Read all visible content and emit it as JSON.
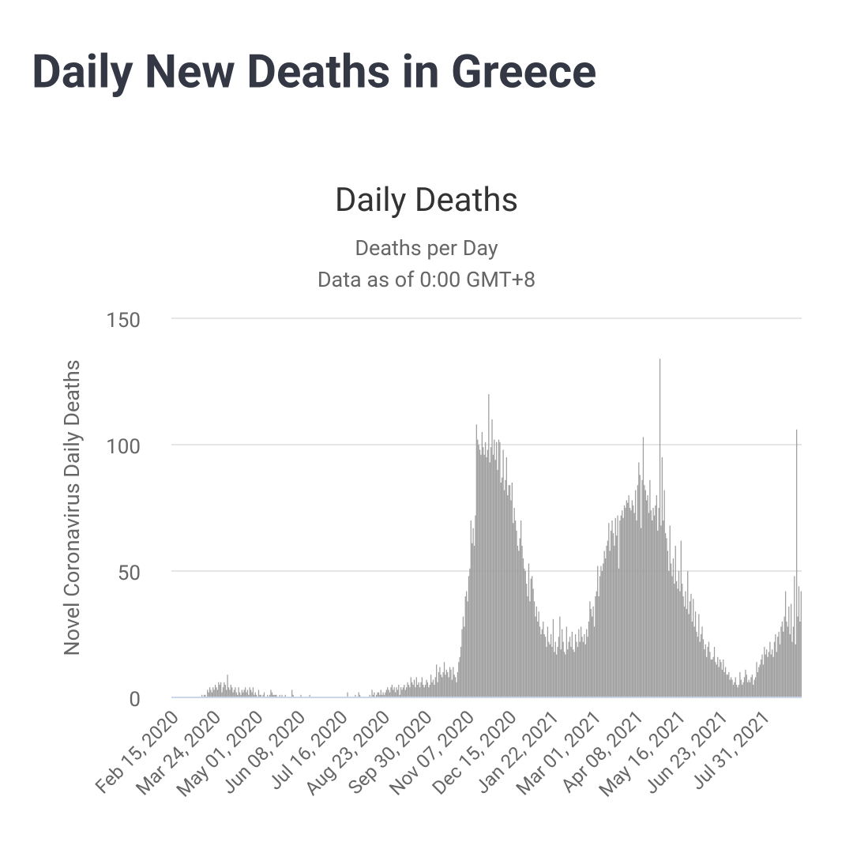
{
  "header": {
    "title": "Daily New Deaths in Greece"
  },
  "chart_data": {
    "type": "bar",
    "title": "Daily Deaths",
    "subtitle": "Deaths per Day",
    "note": "Data as of 0:00 GMT+8",
    "y_label": "Novel Coronavirus Daily Deaths",
    "color": "#9e9e9e",
    "grid": true,
    "ylim": [
      0,
      150
    ],
    "yticks": [
      0,
      50,
      100,
      150
    ],
    "categories": [
      "Feb 15, 2020",
      null,
      null,
      null,
      null,
      null,
      null,
      null,
      null,
      null,
      null,
      null,
      null,
      null,
      null,
      null,
      null,
      null,
      null,
      null,
      null,
      null,
      null,
      null,
      null,
      null,
      null,
      null,
      null,
      null,
      null,
      null,
      null,
      null,
      null,
      null,
      null,
      null,
      "Mar 24, 2020",
      null,
      null,
      null,
      null,
      null,
      null,
      null,
      null,
      null,
      null,
      null,
      null,
      null,
      null,
      null,
      null,
      null,
      null,
      null,
      null,
      null,
      null,
      null,
      null,
      null,
      null,
      null,
      null,
      null,
      null,
      null,
      null,
      null,
      null,
      null,
      null,
      null,
      "May 01, 2020",
      null,
      null,
      null,
      null,
      null,
      null,
      null,
      null,
      null,
      null,
      null,
      null,
      null,
      null,
      null,
      null,
      null,
      null,
      null,
      null,
      null,
      null,
      null,
      null,
      null,
      null,
      null,
      null,
      null,
      null,
      null,
      null,
      null,
      null,
      null,
      null,
      null,
      "Jun 08, 2020",
      null,
      null,
      null,
      null,
      null,
      null,
      null,
      null,
      null,
      null,
      null,
      null,
      null,
      null,
      null,
      null,
      null,
      null,
      null,
      null,
      null,
      null,
      null,
      null,
      null,
      null,
      null,
      null,
      null,
      null,
      null,
      null,
      null,
      null,
      null,
      null,
      null,
      "Jul 16, 2020",
      null,
      null,
      null,
      null,
      null,
      null,
      null,
      null,
      null,
      null,
      null,
      null,
      null,
      null,
      null,
      null,
      null,
      null,
      null,
      null,
      null,
      null,
      null,
      null,
      null,
      null,
      null,
      null,
      null,
      null,
      null,
      null,
      null,
      null,
      null,
      null,
      null,
      "Aug 23, 2020",
      null,
      null,
      null,
      null,
      null,
      null,
      null,
      null,
      null,
      null,
      null,
      null,
      null,
      null,
      null,
      null,
      null,
      null,
      null,
      null,
      null,
      null,
      null,
      null,
      null,
      null,
      null,
      null,
      null,
      null,
      null,
      null,
      null,
      null,
      null,
      null,
      null,
      "Sep 30, 2020",
      null,
      null,
      null,
      null,
      null,
      null,
      null,
      null,
      null,
      null,
      null,
      null,
      null,
      null,
      null,
      null,
      null,
      null,
      null,
      null,
      null,
      null,
      null,
      null,
      null,
      null,
      null,
      null,
      null,
      null,
      null,
      null,
      null,
      null,
      null,
      null,
      null,
      "Nov 07, 2020",
      null,
      null,
      null,
      null,
      null,
      null,
      null,
      null,
      null,
      null,
      null,
      null,
      null,
      null,
      null,
      null,
      null,
      null,
      null,
      null,
      null,
      null,
      null,
      null,
      null,
      null,
      null,
      null,
      null,
      null,
      null,
      null,
      null,
      null,
      null,
      null,
      null,
      "Dec 15, 2020",
      null,
      null,
      null,
      null,
      null,
      null,
      null,
      null,
      null,
      null,
      null,
      null,
      null,
      null,
      null,
      null,
      null,
      null,
      null,
      null,
      null,
      null,
      null,
      null,
      null,
      null,
      null,
      null,
      null,
      null,
      null,
      null,
      null,
      null,
      null,
      null,
      null,
      "Jan 22, 2021",
      null,
      null,
      null,
      null,
      null,
      null,
      null,
      null,
      null,
      null,
      null,
      null,
      null,
      null,
      null,
      null,
      null,
      null,
      null,
      null,
      null,
      null,
      null,
      null,
      null,
      null,
      null,
      null,
      null,
      null,
      null,
      null,
      null,
      null,
      null,
      null,
      null,
      "Mar 01, 2021",
      null,
      null,
      null,
      null,
      null,
      null,
      null,
      null,
      null,
      null,
      null,
      null,
      null,
      null,
      null,
      null,
      null,
      null,
      null,
      null,
      null,
      null,
      null,
      null,
      null,
      null,
      null,
      null,
      null,
      null,
      null,
      null,
      null,
      null,
      null,
      null,
      null,
      "Apr 08, 2021",
      null,
      null,
      null,
      null,
      null,
      null,
      null,
      null,
      null,
      null,
      null,
      null,
      null,
      null,
      null,
      null,
      null,
      null,
      null,
      null,
      null,
      null,
      null,
      null,
      null,
      null,
      null,
      null,
      null,
      null,
      null,
      null,
      null,
      null,
      null,
      null,
      null,
      "May 16, 2021",
      null,
      null,
      null,
      null,
      null,
      null,
      null,
      null,
      null,
      null,
      null,
      null,
      null,
      null,
      null,
      null,
      null,
      null,
      null,
      null,
      null,
      null,
      null,
      null,
      null,
      null,
      null,
      null,
      null,
      null,
      null,
      null,
      null,
      null,
      null,
      null,
      null,
      "Jun 23, 2021",
      null,
      null,
      null,
      null,
      null,
      null,
      null,
      null,
      null,
      null,
      null,
      null,
      null,
      null,
      null,
      null,
      null,
      null,
      null,
      null,
      null,
      null,
      null,
      null,
      null,
      null,
      null,
      null,
      null,
      null,
      null,
      null,
      null,
      null,
      null,
      null,
      null,
      "Jul 31, 2021",
      null,
      null,
      null,
      null,
      null,
      null,
      null,
      null,
      null,
      null,
      null,
      null,
      null,
      null,
      null,
      null,
      null,
      null,
      null,
      null,
      null,
      null,
      null,
      null,
      null,
      null,
      null,
      null,
      null,
      null,
      null,
      null,
      null,
      null
    ],
    "values": [
      0,
      0,
      0,
      0,
      0,
      0,
      0,
      0,
      0,
      0,
      0,
      0,
      0,
      0,
      0,
      0,
      0,
      0,
      0,
      0,
      0,
      0,
      0,
      0,
      0,
      0,
      0,
      1,
      0,
      1,
      1,
      0,
      3,
      2,
      4,
      3,
      2,
      4,
      3,
      5,
      4,
      3,
      6,
      5,
      6,
      2,
      4,
      6,
      5,
      3,
      9,
      4,
      3,
      5,
      4,
      2,
      3,
      4,
      2,
      1,
      4,
      2,
      1,
      3,
      2,
      3,
      4,
      2,
      3,
      1,
      4,
      3,
      2,
      4,
      1,
      2,
      1,
      0,
      3,
      1,
      1,
      0,
      1,
      2,
      0,
      0,
      1,
      0,
      1,
      3,
      2,
      1,
      1,
      1,
      1,
      0,
      0,
      1,
      0,
      1,
      0,
      0,
      1,
      0,
      0,
      0,
      0,
      0,
      3,
      1,
      0,
      0,
      0,
      0,
      0,
      0,
      1,
      0,
      0,
      0,
      0,
      0,
      0,
      0,
      1,
      0,
      0,
      0,
      0,
      0,
      0,
      0,
      0,
      0,
      0,
      0,
      0,
      0,
      0,
      0,
      0,
      0,
      0,
      0,
      0,
      0,
      0,
      0,
      0,
      0,
      0,
      0,
      0,
      0,
      0,
      0,
      0,
      0,
      2,
      0,
      0,
      0,
      0,
      0,
      0,
      1,
      0,
      0,
      2,
      1,
      0,
      0,
      0,
      0,
      0,
      0,
      0,
      0,
      1,
      0,
      3,
      1,
      2,
      0,
      1,
      2,
      2,
      1,
      3,
      1,
      2,
      1,
      2,
      3,
      4,
      3,
      2,
      4,
      5,
      3,
      4,
      2,
      4,
      3,
      5,
      1,
      4,
      3,
      4,
      5,
      3,
      4,
      6,
      5,
      4,
      8,
      6,
      5,
      7,
      4,
      8,
      5,
      6,
      4,
      6,
      8,
      5,
      4,
      5,
      7,
      6,
      4,
      5,
      9,
      6,
      7,
      5,
      8,
      13,
      6,
      10,
      12,
      9,
      8,
      10,
      14,
      9,
      11,
      10,
      8,
      12,
      11,
      7,
      12,
      9,
      8,
      6,
      10,
      14,
      16,
      20,
      27,
      32,
      28,
      40,
      42,
      38,
      48,
      51,
      70,
      61,
      67,
      60,
      72,
      108,
      102,
      100,
      98,
      96,
      105,
      99,
      96,
      101,
      95,
      98,
      120,
      93,
      99,
      110,
      96,
      102,
      94,
      101,
      90,
      102,
      101,
      85,
      87,
      98,
      82,
      86,
      95,
      80,
      84,
      84,
      78,
      85,
      69,
      75,
      70,
      66,
      60,
      58,
      63,
      70,
      60,
      55,
      51,
      50,
      45,
      40,
      53,
      38,
      47,
      48,
      43,
      38,
      32,
      36,
      30,
      34,
      28,
      25,
      27,
      30,
      25,
      24,
      20,
      28,
      22,
      21,
      25,
      20,
      31,
      18,
      22,
      17,
      20,
      24,
      32,
      19,
      27,
      22,
      18,
      17,
      28,
      19,
      22,
      24,
      20,
      26,
      19,
      18,
      25,
      22,
      20,
      27,
      22,
      28,
      24,
      22,
      25,
      21,
      27,
      24,
      30,
      38,
      35,
      32,
      36,
      28,
      40,
      42,
      52,
      40,
      48,
      52,
      50,
      53,
      58,
      55,
      60,
      62,
      69,
      58,
      66,
      70,
      65,
      60,
      71,
      64,
      72,
      51,
      70,
      72,
      74,
      71,
      76,
      75,
      78,
      77,
      80,
      75,
      74,
      78,
      76,
      73,
      82,
      70,
      84,
      93,
      88,
      67,
      86,
      103,
      84,
      82,
      78,
      80,
      73,
      86,
      74,
      70,
      75,
      72,
      76,
      80,
      66,
      75,
      134,
      68,
      95,
      70,
      82,
      65,
      63,
      58,
      50,
      68,
      53,
      48,
      55,
      45,
      60,
      46,
      43,
      50,
      42,
      62,
      45,
      40,
      36,
      42,
      35,
      50,
      33,
      38,
      41,
      30,
      39,
      28,
      34,
      26,
      24,
      33,
      22,
      25,
      28,
      23,
      19,
      21,
      16,
      20,
      22,
      18,
      15,
      15,
      16,
      20,
      14,
      13,
      16,
      12,
      15,
      14,
      11,
      15,
      10,
      12,
      9,
      9,
      10,
      7,
      8,
      7,
      5,
      6,
      8,
      5,
      4,
      5,
      10,
      7,
      5,
      6,
      8,
      11,
      9,
      6,
      7,
      6,
      8,
      9,
      5,
      7,
      8,
      14,
      10,
      12,
      13,
      15,
      17,
      13,
      20,
      17,
      19,
      16,
      18,
      22,
      17,
      19,
      16,
      22,
      25,
      18,
      24,
      26,
      21,
      28,
      30,
      26,
      32,
      42,
      30,
      28,
      36,
      25,
      37,
      22,
      28,
      48,
      21,
      106,
      32,
      44,
      30,
      42
    ]
  }
}
